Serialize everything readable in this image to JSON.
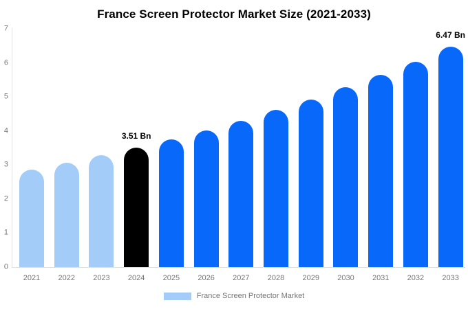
{
  "chart_data": {
    "type": "bar",
    "title": "France Screen Protector Market Size (2021-2033)",
    "unit": "Bn",
    "categories": [
      "2021",
      "2022",
      "2023",
      "2024",
      "2025",
      "2026",
      "2027",
      "2028",
      "2029",
      "2030",
      "2031",
      "2032",
      "2033"
    ],
    "values": [
      2.86,
      3.06,
      3.28,
      3.51,
      3.76,
      4.02,
      4.3,
      4.61,
      4.93,
      5.28,
      5.65,
      6.04,
      6.47
    ],
    "bar_roles": [
      "historical",
      "historical",
      "historical",
      "base",
      "forecast",
      "forecast",
      "forecast",
      "forecast",
      "forecast",
      "forecast",
      "forecast",
      "forecast",
      "forecast"
    ],
    "role_colors": {
      "historical": "#A4CCF8",
      "base": "#000000",
      "forecast": "#0768FA"
    },
    "data_labels": [
      {
        "index": 3,
        "text": "3.51 Bn"
      },
      {
        "index": 12,
        "text": "6.47 Bn"
      }
    ],
    "ylim": [
      0,
      7
    ],
    "yticks": [
      0,
      1,
      2,
      3,
      4,
      5,
      6,
      7
    ],
    "grid": false,
    "xlabel": "",
    "ylabel": "",
    "legend": {
      "position": "bottom",
      "items": [
        {
          "label": "France Screen Protector Market",
          "color": "#A4CCF8"
        }
      ]
    },
    "colors": {
      "title": "#000000",
      "tick_labels": "#757575",
      "axis_lines": "#E0E0E0",
      "background": "#FFFFFF"
    }
  }
}
